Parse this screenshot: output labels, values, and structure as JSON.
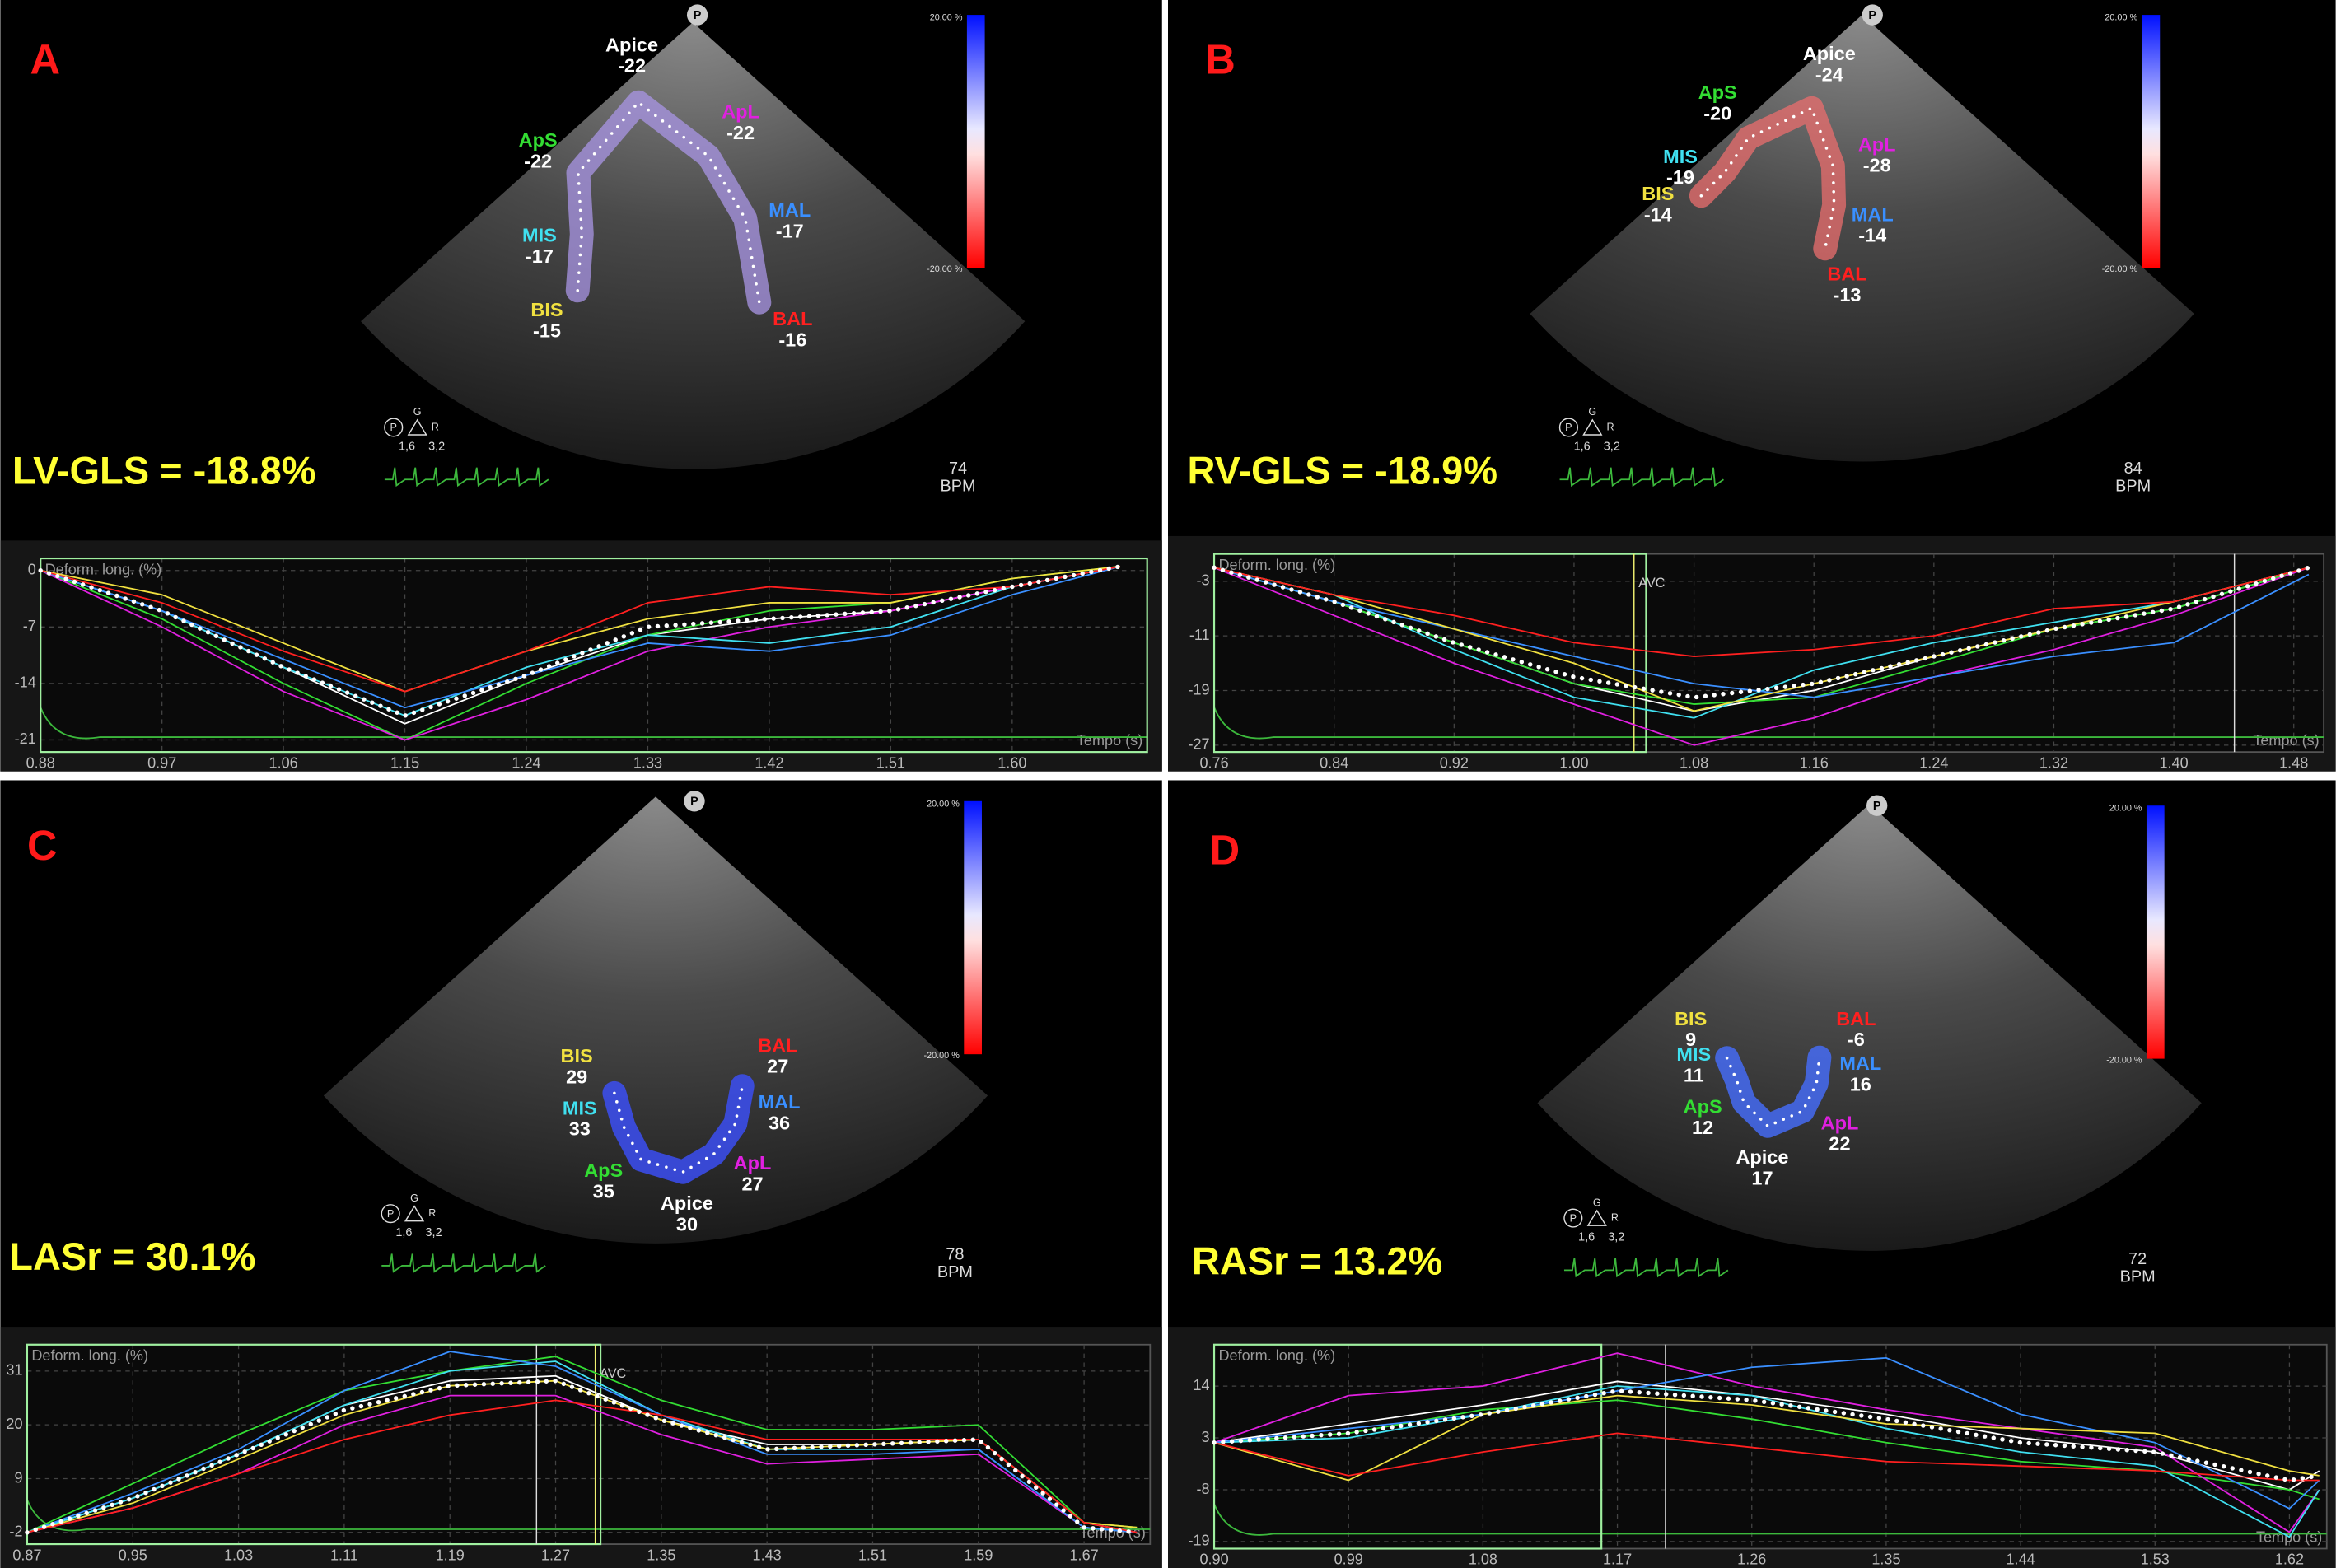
{
  "panels": [
    {
      "letter": "A",
      "summary": "LV-GLS = -18.8%",
      "rate": 74,
      "rate_unit": "BPM",
      "marker": "P",
      "scale_top": "20.00 %",
      "scale_bottom": "-20.00 %",
      "probe": {
        "p": "P",
        "g": "G",
        "r": "R",
        "left": "1,6",
        "right": "3,2"
      },
      "segments": [
        {
          "name": "Apice",
          "value": -22
        },
        {
          "name": "ApS",
          "value": -22
        },
        {
          "name": "ApL",
          "value": -22
        },
        {
          "name": "MIS",
          "value": -17
        },
        {
          "name": "MAL",
          "value": -17
        },
        {
          "name": "BIS",
          "value": -15
        },
        {
          "name": "BAL",
          "value": -16
        }
      ]
    },
    {
      "letter": "B",
      "summary": "RV-GLS = -18.9%",
      "rate": 84,
      "rate_unit": "BPM",
      "marker": "P",
      "scale_top": "20.00 %",
      "scale_bottom": "-20.00 %",
      "probe": {
        "p": "P",
        "g": "G",
        "r": "R",
        "left": "1,6",
        "right": "3,2"
      },
      "segments": [
        {
          "name": "Apice",
          "value": -24
        },
        {
          "name": "ApS",
          "value": -20
        },
        {
          "name": "ApL",
          "value": -28
        },
        {
          "name": "MIS",
          "value": -19
        },
        {
          "name": "MAL",
          "value": -14
        },
        {
          "name": "BIS",
          "value": -14
        },
        {
          "name": "BAL",
          "value": -13
        }
      ]
    },
    {
      "letter": "C",
      "summary": "LASr = 30.1%",
      "rate": 78,
      "rate_unit": "BPM",
      "marker": "P",
      "scale_top": "20.00 %",
      "scale_bottom": "-20.00 %",
      "probe": {
        "p": "P",
        "g": "G",
        "r": "R",
        "left": "1,6",
        "right": "3,2"
      },
      "segments": [
        {
          "name": "Apice",
          "value": 30
        },
        {
          "name": "ApS",
          "value": 35
        },
        {
          "name": "ApL",
          "value": 27
        },
        {
          "name": "MIS",
          "value": 33
        },
        {
          "name": "MAL",
          "value": 36
        },
        {
          "name": "BIS",
          "value": 29
        },
        {
          "name": "BAL",
          "value": 27
        }
      ]
    },
    {
      "letter": "D",
      "summary": "RASr = 13.2%",
      "rate": 72,
      "rate_unit": "BPM",
      "marker": "P",
      "scale_top": "20.00 %",
      "scale_bottom": "-20.00 %",
      "probe": {
        "p": "P",
        "g": "G",
        "r": "R",
        "left": "1,6",
        "right": "3,2"
      },
      "segments": [
        {
          "name": "Apice",
          "value": 17
        },
        {
          "name": "ApS",
          "value": 12
        },
        {
          "name": "ApL",
          "value": 22
        },
        {
          "name": "MIS",
          "value": 11
        },
        {
          "name": "MAL",
          "value": 16
        },
        {
          "name": "BIS",
          "value": 9
        },
        {
          "name": "BAL",
          "value": -6
        }
      ]
    }
  ],
  "chart_data": [
    {
      "type": "line",
      "ylabel": "Deform. long. (%)",
      "xlabel": "Tempo (s)",
      "grid": true,
      "xlim": [
        0.88,
        1.7
      ],
      "ylim": [
        -22.5,
        1.5
      ],
      "xticks": [
        0.88,
        0.97,
        1.06,
        1.15,
        1.24,
        1.33,
        1.42,
        1.51,
        {
          "value": 1.6,
          "label": "1.60"
        }
      ],
      "yticks": [
        0,
        -7,
        -14,
        -21
      ],
      "x": [
        0.88,
        0.97,
        1.06,
        1.15,
        1.24,
        1.33,
        1.42,
        1.51,
        1.6,
        1.68
      ],
      "series": [
        {
          "color": "#ffffff",
          "values": [
            0,
            -5,
            -12,
            -19,
            -13,
            -8,
            -6,
            -5,
            -2,
            0.5
          ]
        },
        {
          "color": "#33dd33",
          "values": [
            0,
            -6,
            -14,
            -21,
            -14,
            -8,
            -5,
            -4,
            -1,
            0.5
          ]
        },
        {
          "color": "#e020e0",
          "values": [
            0,
            -7,
            -15,
            -21,
            -16,
            -10,
            -7,
            -5,
            -2,
            0.5
          ]
        },
        {
          "color": "#40e0f0",
          "values": [
            0,
            -5,
            -12,
            -18,
            -12,
            -8,
            -9,
            -7,
            -2,
            0.5
          ]
        },
        {
          "color": "#3a8fff",
          "values": [
            0,
            -5,
            -11,
            -17,
            -13,
            -9,
            -10,
            -8,
            -3,
            0.5
          ]
        },
        {
          "color": "#f0e040",
          "values": [
            0,
            -3,
            -9,
            -15,
            -10,
            -6,
            -4,
            -4,
            -1,
            0.5
          ]
        },
        {
          "color": "#ff2020",
          "values": [
            0,
            -4,
            -10,
            -15,
            -10,
            -4,
            -2,
            -3,
            -2,
            0.5
          ]
        }
      ],
      "mean": {
        "color": "#ffffff",
        "values": [
          0,
          -5,
          -12,
          -18,
          -13,
          -7,
          -6,
          -5,
          -2,
          0.5
        ]
      }
    },
    {
      "type": "line",
      "ylabel": "Deform. long. (%)",
      "xlabel": "Tempo (s)",
      "grid": true,
      "xlim": [
        0.76,
        1.5
      ],
      "ylim": [
        -28,
        1
      ],
      "xticks": [
        0.76,
        0.84,
        0.92,
        {
          "value": 1.0,
          "label": "1.00"
        },
        1.08,
        1.16,
        1.24,
        1.32,
        {
          "value": 1.4,
          "label": "1.40"
        },
        1.48
      ],
      "yticks": [
        -3,
        -11,
        -19,
        -27
      ],
      "annotations": [
        {
          "text": "AVC",
          "x": 1.04
        }
      ],
      "x": [
        0.76,
        0.84,
        0.92,
        1.0,
        1.08,
        1.16,
        1.24,
        1.32,
        1.4,
        1.49
      ],
      "series": [
        {
          "color": "#ffffff",
          "values": [
            -1,
            -6,
            -12,
            -18,
            -22,
            -19,
            -14,
            -10,
            -7,
            -1
          ]
        },
        {
          "color": "#33dd33",
          "values": [
            -1,
            -6,
            -12,
            -18,
            -21,
            -20,
            -15,
            -10,
            -7,
            -1
          ]
        },
        {
          "color": "#e020e0",
          "values": [
            -1,
            -8,
            -15,
            -21,
            -27,
            -23,
            -17,
            -13,
            -8,
            -1
          ]
        },
        {
          "color": "#40e0f0",
          "values": [
            -1,
            -5,
            -13,
            -20,
            -23,
            -16,
            -12,
            -9,
            -6,
            -1
          ]
        },
        {
          "color": "#3a8fff",
          "values": [
            -1,
            -6,
            -10,
            -14,
            -18,
            -20,
            -17,
            -14,
            -12,
            -2
          ]
        },
        {
          "color": "#f0e040",
          "values": [
            -1,
            -5,
            -10,
            -15,
            -22,
            -18,
            -14,
            -10,
            -6,
            -1
          ]
        },
        {
          "color": "#ff2020",
          "values": [
            -1,
            -5,
            -8,
            -12,
            -14,
            -13,
            -11,
            -7,
            -6,
            -1
          ]
        }
      ],
      "mean": {
        "color": "#ffffff",
        "values": [
          -1,
          -6,
          -12,
          -17,
          -20,
          -18,
          -14,
          -10,
          -7,
          -1
        ]
      }
    },
    {
      "type": "line",
      "ylabel": "Deform. long. (%)",
      "xlabel": "Tempo (s)",
      "grid": true,
      "xlim": [
        0.87,
        1.72
      ],
      "ylim": [
        -4.4,
        36.4
      ],
      "xticks": [
        0.87,
        0.95,
        1.03,
        1.11,
        1.19,
        1.27,
        1.35,
        1.43,
        1.51,
        1.59,
        1.67
      ],
      "yticks": [
        31,
        20,
        9,
        -2
      ],
      "annotations": [
        {
          "text": "AVC",
          "x": 1.3
        }
      ],
      "x": [
        0.87,
        0.95,
        1.03,
        1.11,
        1.19,
        1.27,
        1.35,
        1.43,
        1.51,
        1.59,
        1.67,
        1.71
      ],
      "series": [
        {
          "color": "#ffffff",
          "values": [
            -2,
            5,
            14,
            24,
            29,
            30,
            21,
            16,
            16,
            17,
            0,
            -2
          ]
        },
        {
          "color": "#33dd33",
          "values": [
            -2,
            8,
            18,
            27,
            31,
            34,
            25,
            19,
            19,
            20,
            0,
            -1
          ]
        },
        {
          "color": "#e020e0",
          "values": [
            -2,
            3,
            10,
            20,
            26,
            26,
            18,
            12,
            13,
            14,
            -1,
            -2
          ]
        },
        {
          "color": "#40e0f0",
          "values": [
            -2,
            5,
            14,
            24,
            31,
            33,
            22,
            15,
            15,
            15,
            -1,
            -2
          ]
        },
        {
          "color": "#3a8fff",
          "values": [
            -2,
            6,
            15,
            27,
            35,
            32,
            22,
            14,
            14,
            15,
            -1,
            -2
          ]
        },
        {
          "color": "#f0e040",
          "values": [
            -2,
            4,
            13,
            22,
            28,
            29,
            21,
            15,
            16,
            17,
            0,
            -1
          ]
        },
        {
          "color": "#ff2020",
          "values": [
            -2,
            3,
            10,
            17,
            22,
            25,
            22,
            17,
            17,
            17,
            0,
            -2
          ]
        }
      ],
      "mean": {
        "color": "#ffffff",
        "values": [
          -2,
          5,
          14,
          23,
          28,
          29,
          21,
          15,
          16,
          17,
          -1,
          -2
        ]
      }
    },
    {
      "type": "line",
      "ylabel": "Deform. long. (%)",
      "xlabel": "Tempo (s)",
      "grid": true,
      "xlim": [
        0.9,
        1.645
      ],
      "ylim": [
        -20.5,
        22.8
      ],
      "xticks": [
        {
          "value": 0.9,
          "label": "0.90"
        },
        0.99,
        1.08,
        1.17,
        1.26,
        1.35,
        1.44,
        1.53,
        1.62
      ],
      "yticks": [
        14,
        3,
        -8,
        -19
      ],
      "x": [
        0.9,
        0.99,
        1.08,
        1.17,
        1.26,
        1.35,
        1.44,
        1.53,
        1.62,
        1.64
      ],
      "series": [
        {
          "color": "#ffffff",
          "values": [
            2,
            6,
            10,
            15,
            12,
            8,
            3,
            0,
            -8,
            -4
          ]
        },
        {
          "color": "#33dd33",
          "values": [
            2,
            4,
            9,
            11,
            7,
            2,
            -2,
            -4,
            -8,
            -10
          ]
        },
        {
          "color": "#e020e0",
          "values": [
            2,
            12,
            14,
            21,
            14,
            9,
            5,
            1,
            -17,
            -8
          ]
        },
        {
          "color": "#40e0f0",
          "values": [
            2,
            3,
            8,
            14,
            12,
            5,
            0,
            -3,
            -18,
            -8
          ]
        },
        {
          "color": "#3a8fff",
          "values": [
            2,
            5,
            8,
            13,
            18,
            20,
            8,
            2,
            -12,
            -6
          ]
        },
        {
          "color": "#f0e040",
          "values": [
            2,
            -6,
            8,
            12,
            10,
            6,
            5,
            4,
            -4,
            -5
          ]
        },
        {
          "color": "#ff2020",
          "values": [
            2,
            -5,
            0,
            4,
            1,
            -2,
            -3,
            -4,
            -6,
            -6
          ]
        }
      ],
      "mean": {
        "color": "#ffffff",
        "values": [
          2,
          4,
          8,
          13,
          11,
          7,
          2,
          0,
          -6,
          -5
        ]
      }
    }
  ]
}
